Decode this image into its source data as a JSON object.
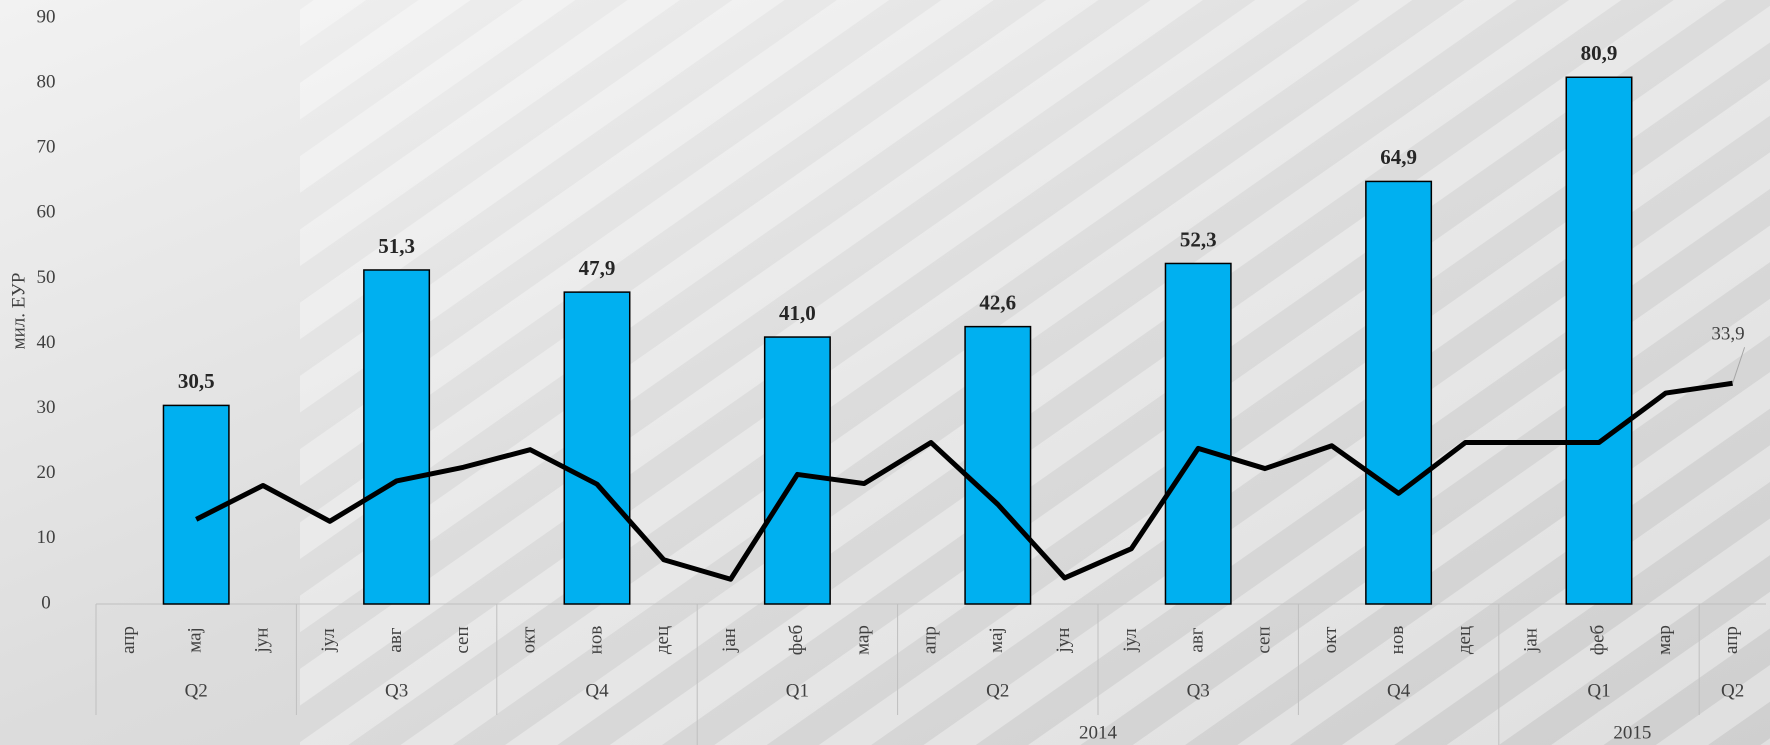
{
  "chart_data": {
    "type": "bar-line",
    "y_label": "мил. ЕУР",
    "ylim": [
      0,
      90
    ],
    "yticks": [
      0,
      10,
      20,
      30,
      40,
      50,
      60,
      70,
      80,
      90
    ],
    "categories": [
      "апр",
      "мај",
      "јун",
      "јул",
      "авг",
      "сеп",
      "окт",
      "нов",
      "дец",
      "јан",
      "феб",
      "мар",
      "апр",
      "мај",
      "јун",
      "јул",
      "авг",
      "сеп",
      "окт",
      "нов",
      "дец",
      "јан",
      "феб",
      "мар",
      "апр"
    ],
    "quarters": [
      "Q2",
      "Q2",
      "Q2",
      "Q3",
      "Q3",
      "Q3",
      "Q4",
      "Q4",
      "Q4",
      "Q1",
      "Q1",
      "Q1",
      "Q2",
      "Q2",
      "Q2",
      "Q3",
      "Q3",
      "Q3",
      "Q4",
      "Q4",
      "Q4",
      "Q1",
      "Q1",
      "Q1",
      "Q2"
    ],
    "years": [
      null,
      null,
      null,
      null,
      null,
      null,
      null,
      null,
      null,
      "2014",
      "2014",
      "2014",
      "2014",
      "2014",
      "2014",
      "2014",
      "2014",
      "2014",
      "2014",
      "2014",
      "2014",
      "2015",
      "2015",
      "2015",
      "2015"
    ],
    "series": [
      {
        "type": "bar",
        "color": "#00b0f0",
        "values": [
          null,
          30.5,
          null,
          null,
          51.3,
          null,
          null,
          47.9,
          null,
          null,
          41.0,
          null,
          null,
          42.6,
          null,
          null,
          52.3,
          null,
          null,
          64.9,
          null,
          null,
          80.9,
          null,
          null
        ],
        "value_labels": [
          null,
          "30,5",
          null,
          null,
          "51,3",
          null,
          null,
          "47,9",
          null,
          null,
          "41,0",
          null,
          null,
          "42,6",
          null,
          null,
          "52,3",
          null,
          null,
          "64,9",
          null,
          null,
          "80,9",
          null,
          null
        ]
      },
      {
        "type": "line",
        "color": "#000000",
        "values": [
          null,
          13.0,
          18.2,
          12.7,
          18.9,
          21.0,
          23.7,
          18.4,
          6.8,
          3.8,
          19.9,
          18.5,
          24.8,
          15.3,
          4.0,
          8.5,
          23.9,
          20.8,
          24.3,
          17.0,
          24.8,
          24.8,
          24.8,
          32.4,
          33.9
        ],
        "value_labels": [
          null,
          null,
          null,
          null,
          null,
          null,
          null,
          null,
          null,
          null,
          null,
          null,
          null,
          null,
          null,
          null,
          null,
          null,
          null,
          null,
          null,
          null,
          null,
          null,
          "33,9"
        ]
      }
    ]
  }
}
